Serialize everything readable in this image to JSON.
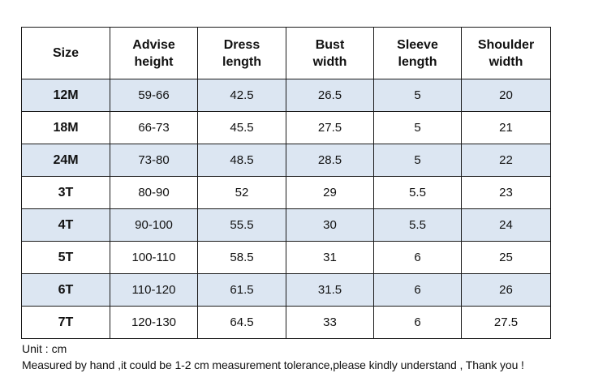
{
  "table": {
    "headers": [
      [
        "Size"
      ],
      [
        "Advise",
        "height"
      ],
      [
        "Dress",
        "length"
      ],
      [
        "Bust",
        "width"
      ],
      [
        "Sleeve",
        "length"
      ],
      [
        "Shoulder",
        "width"
      ]
    ],
    "rows": [
      [
        "12M",
        "59-66",
        "42.5",
        "26.5",
        "5",
        "20"
      ],
      [
        "18M",
        "66-73",
        "45.5",
        "27.5",
        "5",
        "21"
      ],
      [
        "24M",
        "73-80",
        "48.5",
        "28.5",
        "5",
        "22"
      ],
      [
        "3T",
        "80-90",
        "52",
        "29",
        "5.5",
        "23"
      ],
      [
        "4T",
        "90-100",
        "55.5",
        "30",
        "5.5",
        "24"
      ],
      [
        "5T",
        "100-110",
        "58.5",
        "31",
        "6",
        "25"
      ],
      [
        "6T",
        "110-120",
        "61.5",
        "31.5",
        "6",
        "26"
      ],
      [
        "7T",
        "120-130",
        "64.5",
        "33",
        "6",
        "27.5"
      ]
    ],
    "shaded_row_color": "#dce6f2",
    "shaded_rows": [
      0,
      2,
      4,
      6
    ]
  },
  "notes": {
    "unit": "Unit : cm",
    "measurement": "Measured by hand ,it could be 1-2 cm measurement tolerance,please kindly understand , Thank you !"
  }
}
